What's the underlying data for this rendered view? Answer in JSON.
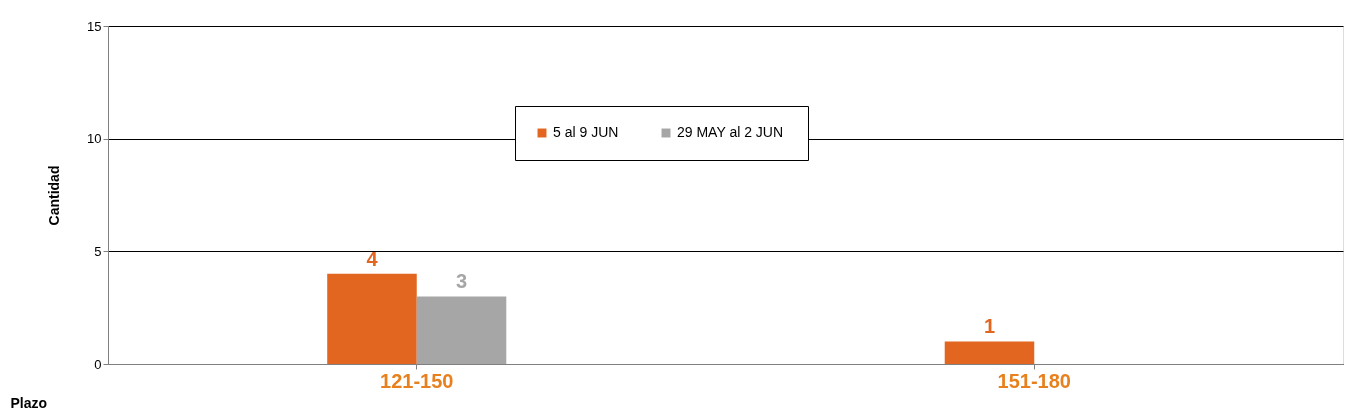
{
  "chart_data": {
    "type": "bar",
    "xlabel": "Plazo",
    "ylabel": "Cantidad",
    "categories": [
      "121-150",
      "151-180"
    ],
    "series": [
      {
        "name": "5 al 9 JUN",
        "color": "#e2661f",
        "values": [
          4,
          1
        ]
      },
      {
        "name": "29  MAY al 2 JUN",
        "color": "#a6a6a6",
        "values": [
          3,
          null
        ]
      }
    ],
    "ylim": [
      0,
      15
    ],
    "yticks": [
      0,
      5,
      10,
      15
    ],
    "grid": "y",
    "legend": "top",
    "data_labels": true
  }
}
